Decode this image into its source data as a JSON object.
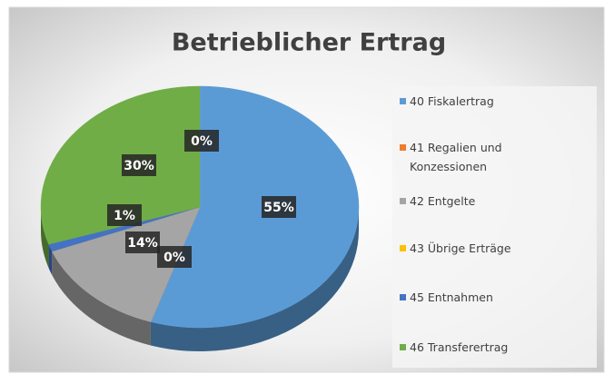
{
  "chart_data": {
    "type": "pie",
    "title": "Betrieblicher Ertrag",
    "categories": [
      "40 Fiskalertrag",
      "41 Regalien und Konzessionen",
      "42 Entgelte",
      "43 Übrige Erträge",
      "45 Entnahmen",
      "46 Transferertrag"
    ],
    "values": [
      55,
      0,
      14,
      0,
      1,
      30
    ],
    "value_labels": [
      "55%",
      "0%",
      "14%",
      "0%",
      "1%",
      "30%"
    ],
    "colors": [
      "#5b9bd5",
      "#ed7d31",
      "#a5a5a5",
      "#ffc000",
      "#4472c4",
      "#70ad47"
    ],
    "legend": "right"
  }
}
